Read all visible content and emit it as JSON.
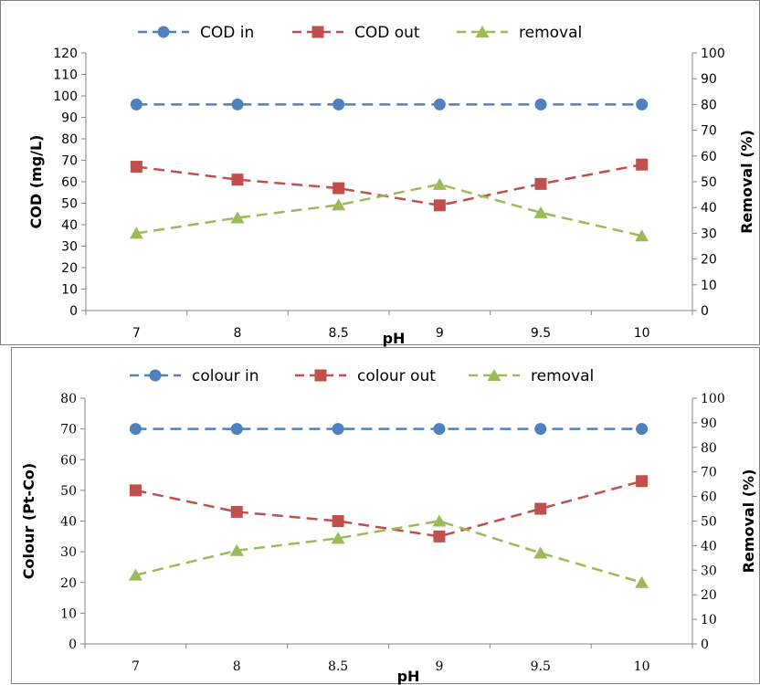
{
  "chart_data": [
    {
      "type": "line",
      "x_ticks": [
        "7",
        "8",
        "8.5",
        "9",
        "9.5",
        "10"
      ],
      "xlabel": "pH",
      "ylabel": "COD (mg/L)",
      "ylabel_right": "Removal (%)",
      "ylim": [
        0,
        120
      ],
      "y_step": 10,
      "y2lim": [
        0,
        100
      ],
      "y2_step": 10,
      "legend_position": "top",
      "series": [
        {
          "name": "COD in",
          "axis": "left",
          "color": "#4f81bd",
          "marker": "circle",
          "values": [
            96,
            96,
            96,
            96,
            96,
            96
          ]
        },
        {
          "name": "COD out",
          "axis": "left",
          "color": "#c0504d",
          "marker": "square",
          "values": [
            67,
            61,
            57,
            49,
            59,
            68
          ]
        },
        {
          "name": "removal",
          "axis": "right",
          "color": "#9bbb59",
          "marker": "triangle",
          "values": [
            30,
            36,
            41,
            49,
            38,
            29
          ]
        }
      ]
    },
    {
      "type": "line",
      "x_ticks": [
        "7",
        "8",
        "8.5",
        "9",
        "9.5",
        "10"
      ],
      "xlabel": "pH",
      "ylabel": "Colour (Pt-Co)",
      "ylabel_right": "Removal (%)",
      "ylim": [
        0,
        80
      ],
      "y_step": 10,
      "y2lim": [
        0,
        100
      ],
      "y2_step": 10,
      "legend_position": "top",
      "series": [
        {
          "name": "colour in",
          "axis": "left",
          "color": "#4f81bd",
          "marker": "circle",
          "values": [
            70,
            70,
            70,
            70,
            70,
            70
          ]
        },
        {
          "name": "colour out",
          "axis": "left",
          "color": "#c0504d",
          "marker": "square",
          "values": [
            50,
            43,
            40,
            35,
            44,
            53
          ]
        },
        {
          "name": "removal",
          "axis": "right",
          "color": "#9bbb59",
          "marker": "triangle",
          "values": [
            28,
            38,
            43,
            50,
            37,
            25
          ]
        }
      ]
    }
  ]
}
